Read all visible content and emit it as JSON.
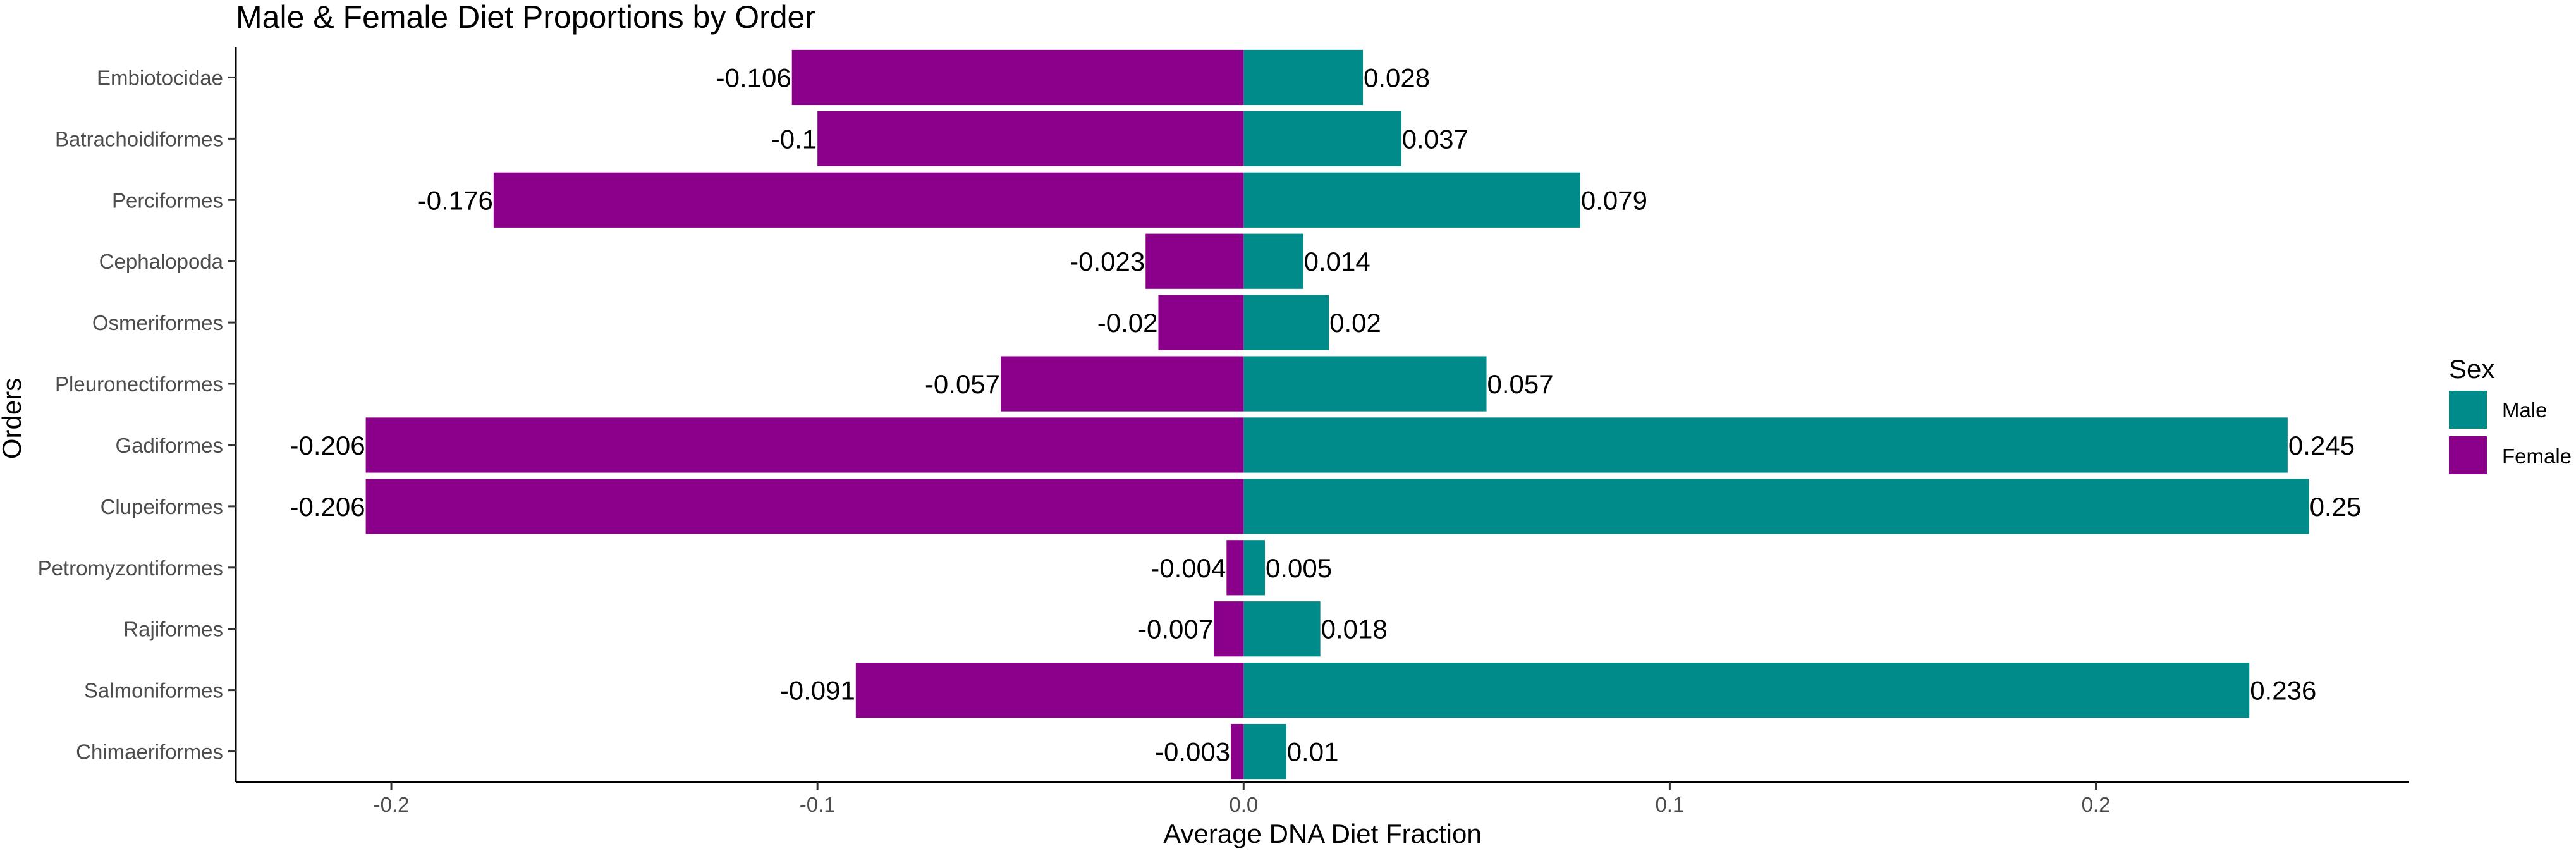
{
  "chart_data": {
    "type": "bar",
    "orientation": "horizontal",
    "title": "Male & Female Diet Proportions by Order",
    "xlabel": "Average DNA Diet Fraction",
    "ylabel": "Orders",
    "xlim": [
      -0.2365,
      0.2735
    ],
    "xticks": [
      -0.2,
      -0.1,
      0.0,
      0.1,
      0.2
    ],
    "xtick_labels": [
      "-0.2",
      "-0.1",
      "0.0",
      "0.1",
      "0.2"
    ],
    "categories": [
      "Embiotocidae",
      "Batrachoidiformes",
      "Perciformes",
      "Cephalopoda",
      "Osmeriformes",
      "Pleuronectiformes",
      "Gadiformes",
      "Clupeiformes",
      "Petromyzontiformes",
      "Rajiformes",
      "Salmoniformes",
      "Chimaeriformes"
    ],
    "series": [
      {
        "name": "Male",
        "color": "#008b8b",
        "values": [
          0.028,
          0.037,
          0.079,
          0.014,
          0.02,
          0.057,
          0.245,
          0.25,
          0.005,
          0.018,
          0.236,
          0.01
        ],
        "labels": [
          "0.028",
          "0.037",
          "0.079",
          "0.014",
          "0.02",
          "0.057",
          "0.245",
          "0.25",
          "0.005",
          "0.018",
          "0.236",
          "0.01"
        ]
      },
      {
        "name": "Female",
        "color": "#8b008b",
        "values": [
          -0.106,
          -0.1,
          -0.176,
          -0.023,
          -0.02,
          -0.057,
          -0.206,
          -0.206,
          -0.004,
          -0.007,
          -0.091,
          -0.003
        ],
        "labels": [
          "-0.106",
          "-0.1",
          "-0.176",
          "-0.023",
          "-0.02",
          "-0.057",
          "-0.206",
          "-0.206",
          "-0.004",
          "-0.007",
          "-0.091",
          "-0.003"
        ]
      }
    ],
    "legend": {
      "title": "Sex",
      "position": "right",
      "entries": [
        "Male",
        "Female"
      ]
    },
    "grid": false
  }
}
